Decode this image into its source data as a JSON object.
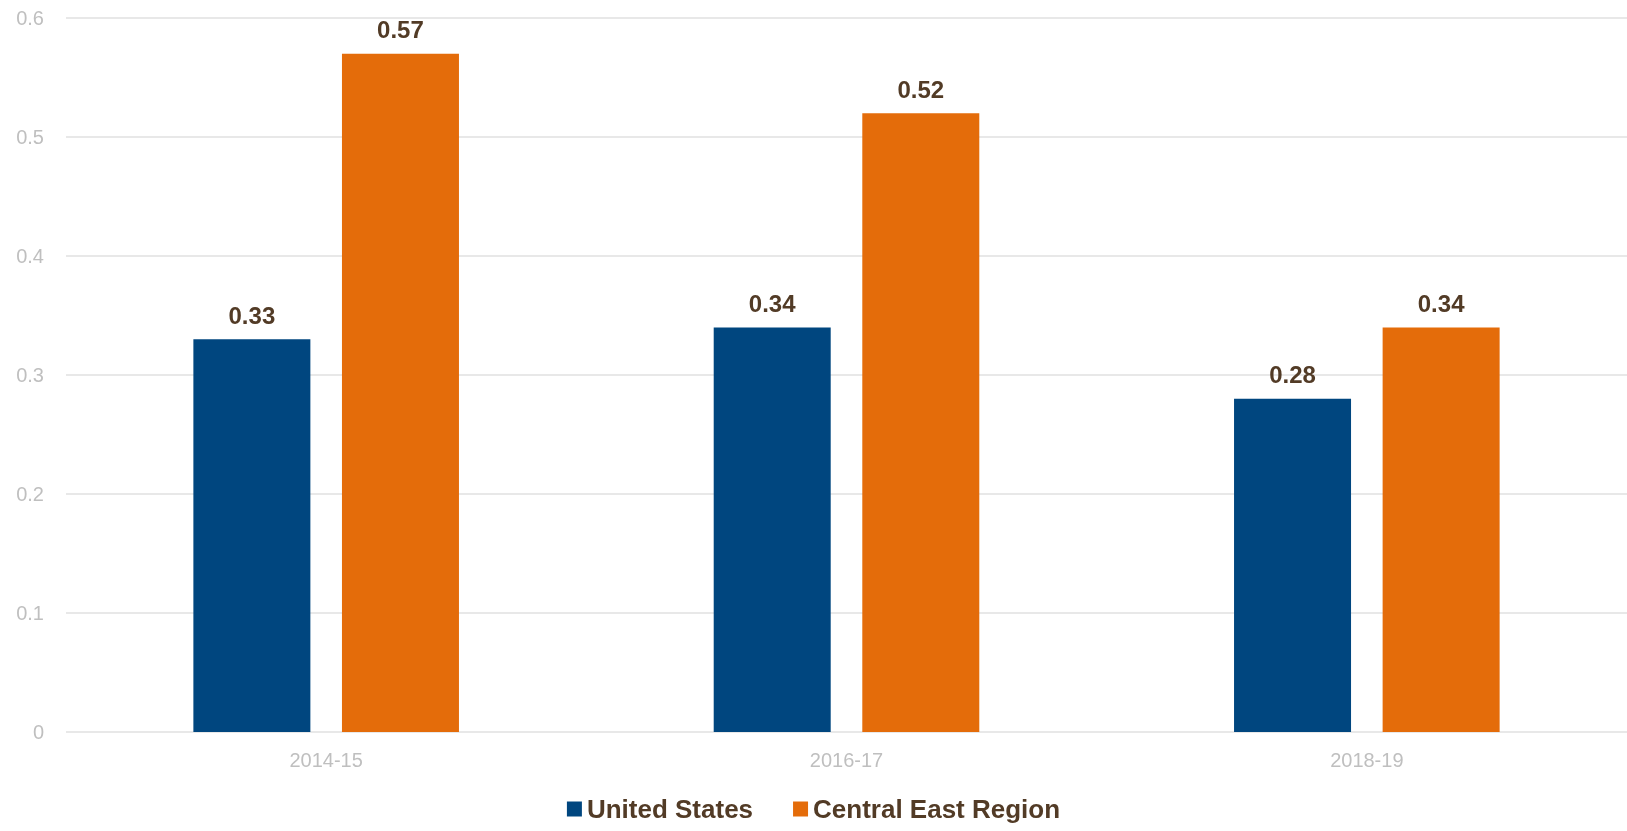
{
  "chart_data": {
    "type": "bar",
    "categories": [
      "2014-15",
      "2016-17",
      "2018-19"
    ],
    "series": [
      {
        "name": "United States",
        "color": "#00467f",
        "values": [
          0.33,
          0.34,
          0.28
        ]
      },
      {
        "name": "Central East Region",
        "color": "#e46c0a",
        "values": [
          0.57,
          0.52,
          0.34
        ]
      }
    ],
    "ylim": [
      0,
      0.6
    ],
    "yticks": [
      0,
      0.1,
      0.2,
      0.3,
      0.4,
      0.5,
      0.6
    ],
    "grid": "y",
    "legend": "bottom",
    "data_labels": true
  }
}
